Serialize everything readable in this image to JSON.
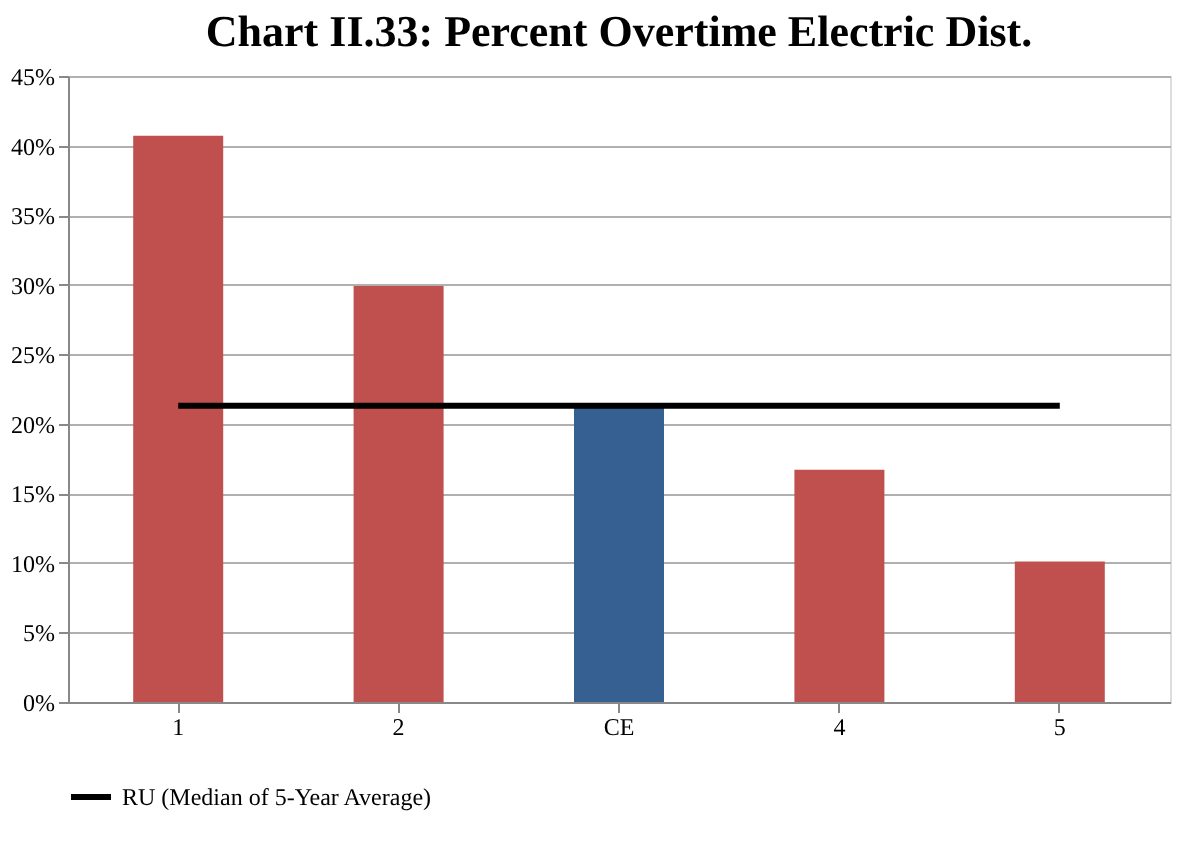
{
  "chart_data": {
    "type": "bar",
    "title": "Chart II.33: Percent Overtime Electric Dist.",
    "categories": [
      "1",
      "2",
      "CE",
      "4",
      "5"
    ],
    "series": [
      {
        "values": [
          40.7,
          29.9,
          21.2,
          16.7,
          10.1
        ],
        "colors": [
          "#c0504d",
          "#c0504d",
          "#376092",
          "#c0504d",
          "#c0504d"
        ]
      },
      {
        "type": "line",
        "name": "RU (Median of 5-Year Average)",
        "color": "#000000",
        "values": [
          21.3,
          21.3,
          21.3,
          21.3,
          21.3
        ]
      }
    ],
    "ylim": [
      0,
      45
    ],
    "yticks": [
      {
        "value": 0,
        "label": "0%"
      },
      {
        "value": 5,
        "label": "5%"
      },
      {
        "value": 10,
        "label": "10%"
      },
      {
        "value": 15,
        "label": "15%"
      },
      {
        "value": 20,
        "label": "20%"
      },
      {
        "value": 25,
        "label": "25%"
      },
      {
        "value": 30,
        "label": "30%"
      },
      {
        "value": 35,
        "label": "35%"
      },
      {
        "value": 40,
        "label": "40%"
      },
      {
        "value": 45,
        "label": "45%"
      }
    ],
    "grid": "y",
    "legend": "bottom",
    "marker": "none",
    "line_style": "solid"
  }
}
